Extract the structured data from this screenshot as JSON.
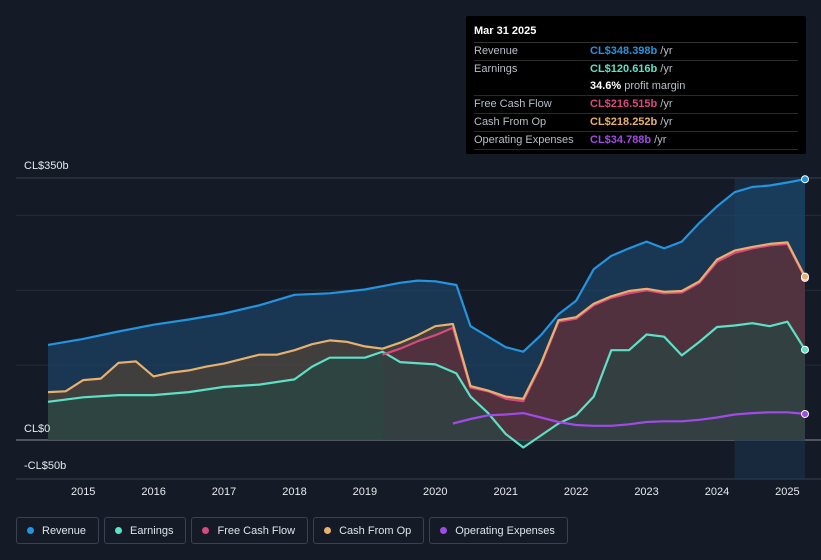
{
  "chart_data": {
    "type": "area",
    "title": "",
    "xlabel": "",
    "ylabel": "",
    "ylim": [
      -50,
      350
    ],
    "y_tick_labels": [
      {
        "value": 350,
        "label": "CL$350b"
      },
      {
        "value": 0,
        "label": "CL$0"
      },
      {
        "value": -50,
        "label": "-CL$50b"
      }
    ],
    "xlim": [
      2014.5,
      2025.25
    ],
    "x_tick_labels": [
      "2015",
      "2016",
      "2017",
      "2018",
      "2019",
      "2020",
      "2021",
      "2022",
      "2023",
      "2024",
      "2025"
    ],
    "series": [
      {
        "name": "Revenue",
        "color": "#2394df",
        "fill": "#1c4a70",
        "points": [
          [
            2014.5,
            127
          ],
          [
            2015,
            135
          ],
          [
            2015.5,
            145
          ],
          [
            2016,
            154
          ],
          [
            2016.5,
            161
          ],
          [
            2017,
            169
          ],
          [
            2017.5,
            180
          ],
          [
            2018,
            194
          ],
          [
            2018.5,
            196
          ],
          [
            2019,
            201
          ],
          [
            2019.5,
            210
          ],
          [
            2019.75,
            213
          ],
          [
            2020,
            212
          ],
          [
            2020.3,
            207
          ],
          [
            2020.5,
            152
          ],
          [
            2020.75,
            138
          ],
          [
            2021,
            124
          ],
          [
            2021.25,
            118
          ],
          [
            2021.5,
            140
          ],
          [
            2021.75,
            168
          ],
          [
            2022,
            186
          ],
          [
            2022.25,
            228
          ],
          [
            2022.5,
            246
          ],
          [
            2022.75,
            256
          ],
          [
            2023,
            265
          ],
          [
            2023.25,
            256
          ],
          [
            2023.5,
            265
          ],
          [
            2023.75,
            290
          ],
          [
            2024,
            312
          ],
          [
            2024.25,
            331
          ],
          [
            2024.5,
            338
          ],
          [
            2024.75,
            340
          ],
          [
            2025,
            344
          ],
          [
            2025.25,
            348.4
          ]
        ]
      },
      {
        "name": "Earnings",
        "color": "#5ee0c7",
        "fill": "#1f4a45",
        "points": [
          [
            2014.5,
            51
          ],
          [
            2015,
            57
          ],
          [
            2015.5,
            60
          ],
          [
            2016,
            60
          ],
          [
            2016.5,
            64
          ],
          [
            2017,
            71
          ],
          [
            2017.5,
            74
          ],
          [
            2018,
            81
          ],
          [
            2018.25,
            98
          ],
          [
            2018.5,
            110
          ],
          [
            2019,
            110
          ],
          [
            2019.25,
            118
          ],
          [
            2019.5,
            104
          ],
          [
            2020,
            101
          ],
          [
            2020.3,
            89
          ],
          [
            2020.5,
            58
          ],
          [
            2020.75,
            36
          ],
          [
            2021,
            8
          ],
          [
            2021.25,
            -10
          ],
          [
            2021.5,
            6
          ],
          [
            2021.75,
            22
          ],
          [
            2022,
            33
          ],
          [
            2022.25,
            58
          ],
          [
            2022.5,
            120
          ],
          [
            2022.75,
            120
          ],
          [
            2023,
            141
          ],
          [
            2023.25,
            138
          ],
          [
            2023.5,
            113
          ],
          [
            2023.75,
            131
          ],
          [
            2024,
            151
          ],
          [
            2024.25,
            153
          ],
          [
            2024.5,
            156
          ],
          [
            2024.75,
            152
          ],
          [
            2025,
            158
          ],
          [
            2025.25,
            120.6
          ]
        ]
      },
      {
        "name": "Free Cash Flow",
        "color": "#d84a7e",
        "fill": "#5a2a3d",
        "points": [
          [
            2019.25,
            114
          ],
          [
            2019.5,
            122
          ],
          [
            2019.75,
            132
          ],
          [
            2020,
            140
          ],
          [
            2020.25,
            150
          ],
          [
            2020.5,
            70
          ],
          [
            2020.75,
            65
          ],
          [
            2021,
            55
          ],
          [
            2021.25,
            52
          ],
          [
            2021.5,
            100
          ],
          [
            2021.75,
            158
          ],
          [
            2022,
            162
          ],
          [
            2022.25,
            180
          ],
          [
            2022.5,
            190
          ],
          [
            2022.75,
            196
          ],
          [
            2023,
            200
          ],
          [
            2023.25,
            196
          ],
          [
            2023.5,
            197
          ],
          [
            2023.75,
            210
          ],
          [
            2024,
            238
          ],
          [
            2024.25,
            250
          ],
          [
            2024.5,
            256
          ],
          [
            2024.75,
            260
          ],
          [
            2025,
            262
          ],
          [
            2025.25,
            216.5
          ]
        ]
      },
      {
        "name": "Cash From Op",
        "color": "#e8b06d",
        "fill": "#5b4432",
        "points": [
          [
            2014.5,
            64
          ],
          [
            2014.75,
            65
          ],
          [
            2015,
            80
          ],
          [
            2015.25,
            82
          ],
          [
            2015.5,
            103
          ],
          [
            2015.75,
            105
          ],
          [
            2016,
            85
          ],
          [
            2016.25,
            90
          ],
          [
            2016.5,
            93
          ],
          [
            2016.75,
            98
          ],
          [
            2017,
            102
          ],
          [
            2017.5,
            114
          ],
          [
            2017.75,
            114
          ],
          [
            2018,
            120
          ],
          [
            2018.25,
            128
          ],
          [
            2018.5,
            133
          ],
          [
            2018.75,
            131
          ],
          [
            2019,
            125
          ],
          [
            2019.25,
            122
          ],
          [
            2019.5,
            130
          ],
          [
            2019.75,
            140
          ],
          [
            2020,
            152
          ],
          [
            2020.25,
            155
          ],
          [
            2020.5,
            72
          ],
          [
            2020.75,
            66
          ],
          [
            2021,
            58
          ],
          [
            2021.25,
            55
          ],
          [
            2021.5,
            102
          ],
          [
            2021.75,
            160
          ],
          [
            2022,
            164
          ],
          [
            2022.25,
            182
          ],
          [
            2022.5,
            192
          ],
          [
            2022.75,
            199
          ],
          [
            2023,
            202
          ],
          [
            2023.25,
            198
          ],
          [
            2023.5,
            199
          ],
          [
            2023.75,
            212
          ],
          [
            2024,
            241
          ],
          [
            2024.25,
            253
          ],
          [
            2024.5,
            258
          ],
          [
            2024.75,
            262
          ],
          [
            2025,
            264
          ],
          [
            2025.25,
            218.3
          ]
        ]
      },
      {
        "name": "Operating Expenses",
        "color": "#a04be6",
        "fill": "none",
        "points": [
          [
            2020.25,
            22
          ],
          [
            2020.5,
            28
          ],
          [
            2020.75,
            33
          ],
          [
            2021,
            34
          ],
          [
            2021.25,
            36
          ],
          [
            2021.5,
            30
          ],
          [
            2021.75,
            24
          ],
          [
            2022,
            20
          ],
          [
            2022.25,
            19
          ],
          [
            2022.5,
            19
          ],
          [
            2022.75,
            21
          ],
          [
            2023,
            24
          ],
          [
            2023.25,
            25
          ],
          [
            2023.5,
            25
          ],
          [
            2023.75,
            27
          ],
          [
            2024,
            30
          ],
          [
            2024.25,
            34
          ],
          [
            2024.5,
            36
          ],
          [
            2024.75,
            37
          ],
          [
            2025,
            37
          ],
          [
            2025.25,
            34.8
          ]
        ]
      }
    ],
    "highlight_region_start": 2024.25,
    "tooltip": {
      "date": "Mar 31 2025",
      "rows": [
        {
          "label": "Revenue",
          "value": "CL$348.398b",
          "unit": "/yr",
          "color": "#2394df"
        },
        {
          "label": "Earnings",
          "value": "CL$120.616b",
          "unit": "/yr",
          "color": "#5ee0c7"
        },
        {
          "label": "",
          "value": "34.6%",
          "unit": "profit margin",
          "color": "#ffffff"
        },
        {
          "label": "Free Cash Flow",
          "value": "CL$216.515b",
          "unit": "/yr",
          "color": "#d84a7e"
        },
        {
          "label": "Cash From Op",
          "value": "CL$218.252b",
          "unit": "/yr",
          "color": "#e8b06d"
        },
        {
          "label": "Operating Expenses",
          "value": "CL$34.788b",
          "unit": "/yr",
          "color": "#a04be6"
        }
      ]
    }
  },
  "legend": [
    {
      "label": "Revenue",
      "color": "#2394df"
    },
    {
      "label": "Earnings",
      "color": "#5ee0c7"
    },
    {
      "label": "Free Cash Flow",
      "color": "#d84a7e"
    },
    {
      "label": "Cash From Op",
      "color": "#e8b06d"
    },
    {
      "label": "Operating Expenses",
      "color": "#a04be6"
    }
  ]
}
